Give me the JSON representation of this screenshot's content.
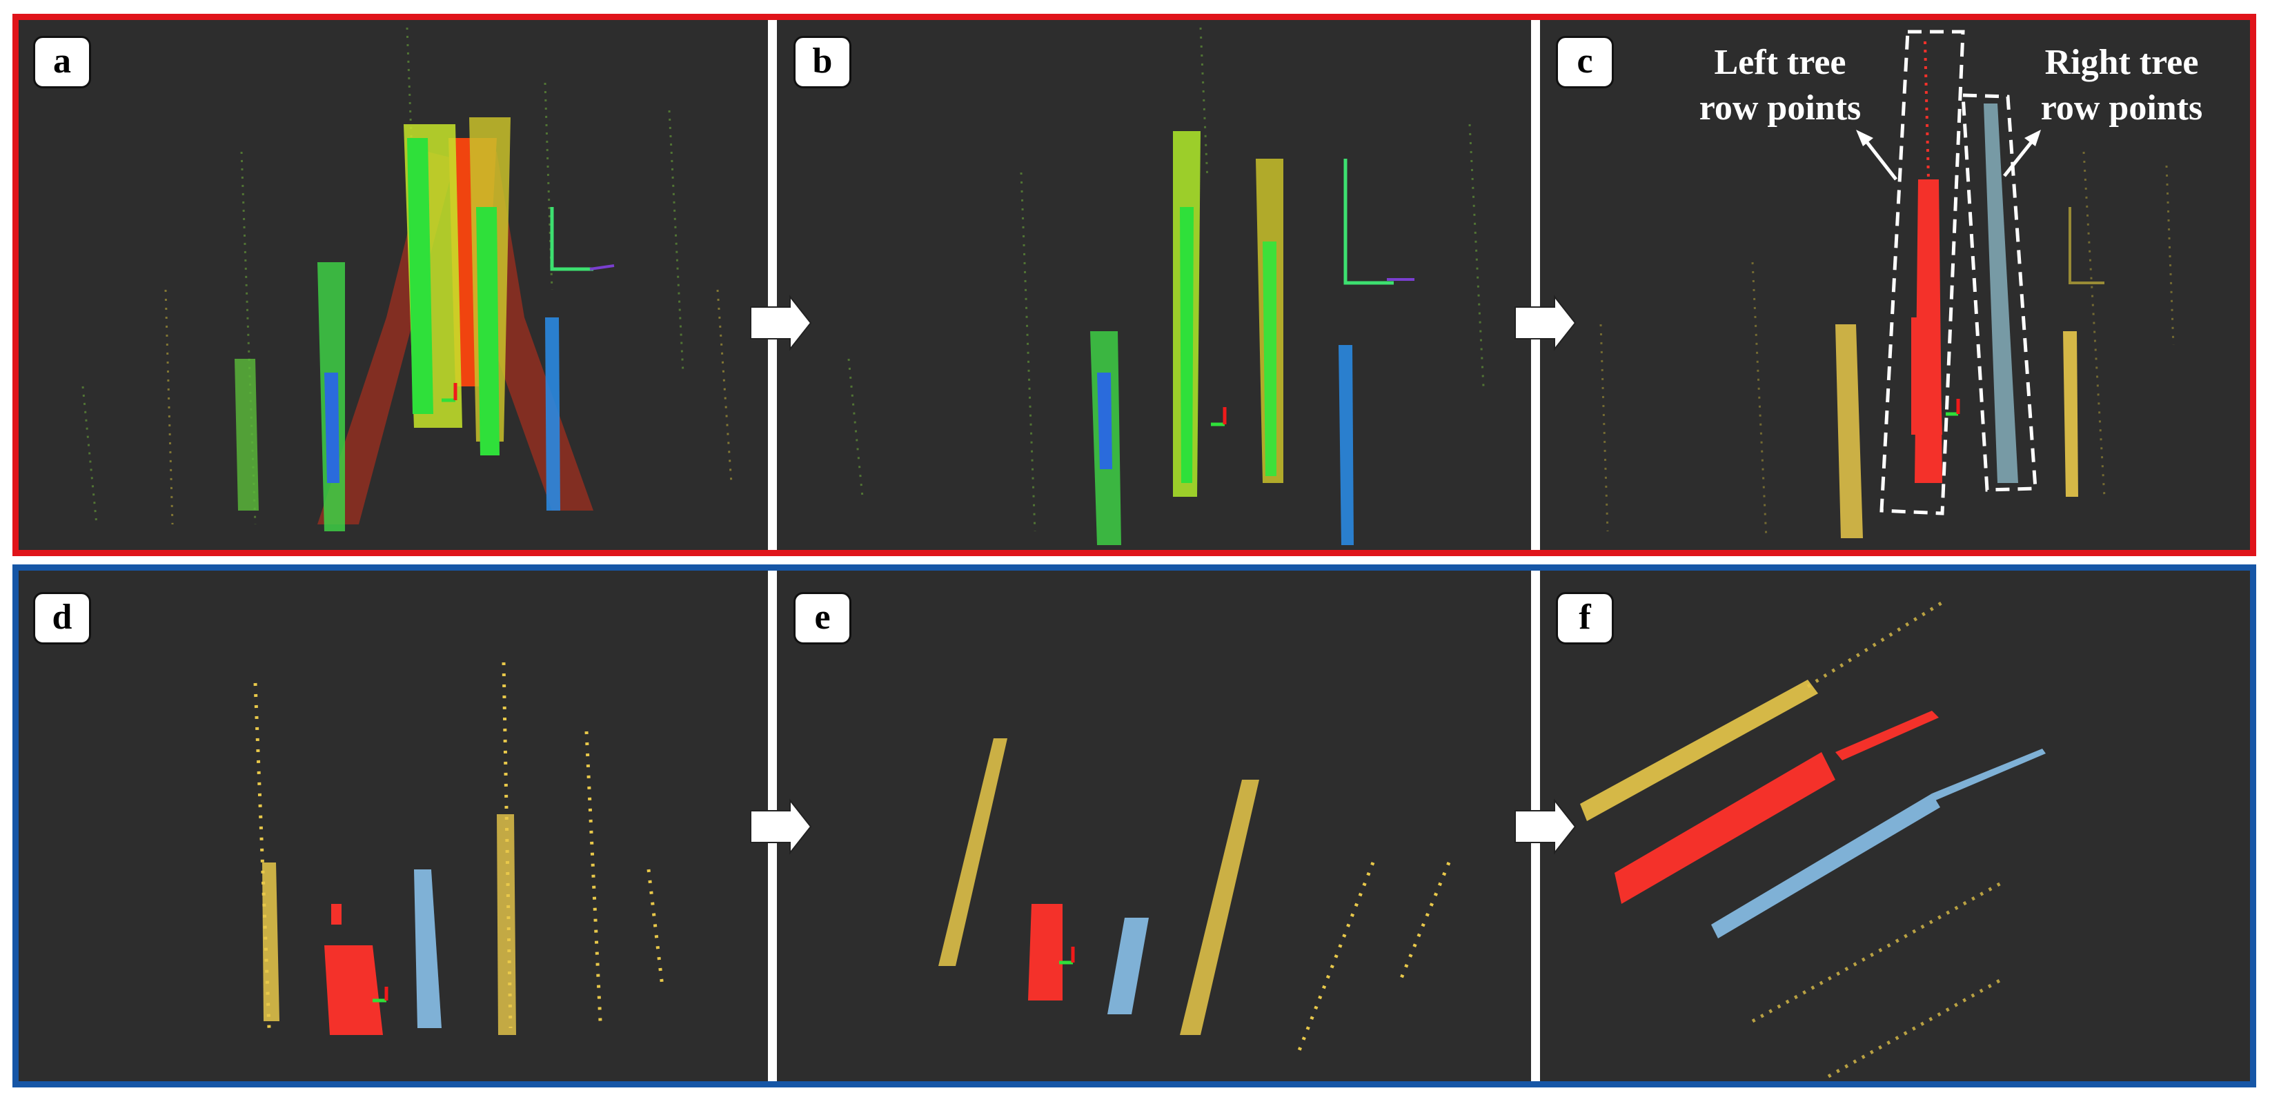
{
  "panels": {
    "a": "a",
    "b": "b",
    "c": "c",
    "d": "d",
    "e": "e",
    "f": "f"
  },
  "annotations": {
    "left_tree_line1": "Left tree",
    "left_tree_line2": "row points",
    "right_tree_line1": "Right tree",
    "right_tree_line2": "row points"
  },
  "colors": {
    "top_border": "#e0141a",
    "bottom_border": "#1656a6",
    "background": "#2d2d2d",
    "left_row": "#f4312a",
    "right_row": "#7fb1d6",
    "other_rows": "#e8c84a"
  }
}
